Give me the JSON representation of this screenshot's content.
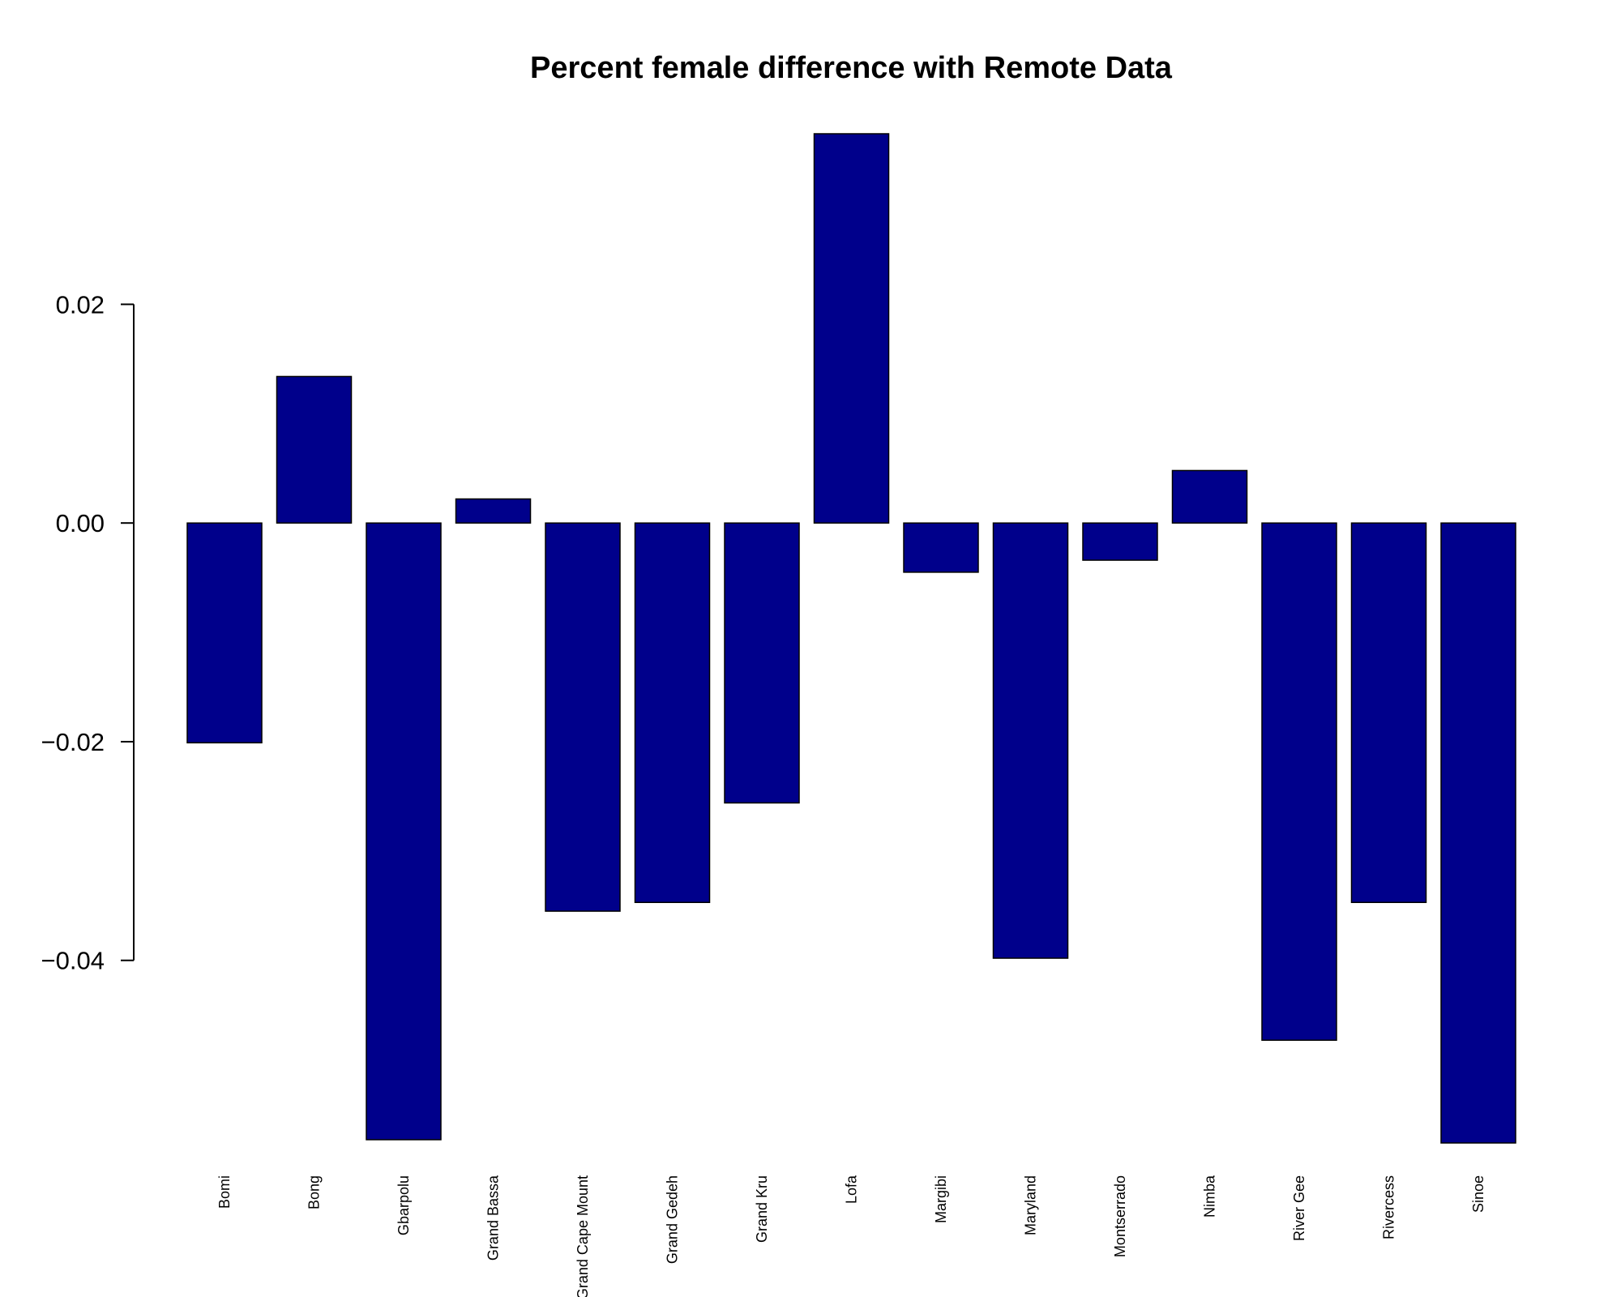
{
  "chart_data": {
    "type": "bar",
    "title": "Percent female difference with Remote Data",
    "xlabel": "",
    "ylabel": "",
    "categories": [
      "Bomi",
      "Bong",
      "Gbarpolu",
      "Grand Bassa",
      "Grand Cape Mount",
      "Grand Gedeh",
      "Grand Kru",
      "Lofa",
      "Margibi",
      "Maryland",
      "Montserrado",
      "Nimba",
      "River Gee",
      "Rivercess",
      "Sinoe"
    ],
    "values": [
      -0.0201,
      0.0134,
      -0.0564,
      0.0022,
      -0.0355,
      -0.0347,
      -0.0256,
      0.0356,
      -0.0045,
      -0.0398,
      -0.0034,
      0.0048,
      -0.0473,
      -0.0347,
      -0.0567
    ],
    "ylim": [
      -0.0567,
      0.0356
    ],
    "yticks": [
      -0.04,
      -0.02,
      0.0,
      0.02
    ],
    "ytick_labels": [
      "−0.04",
      "−0.02",
      "0.00",
      "0.02"
    ],
    "bar_color": "#00008B",
    "grid": false,
    "legend": "none"
  }
}
